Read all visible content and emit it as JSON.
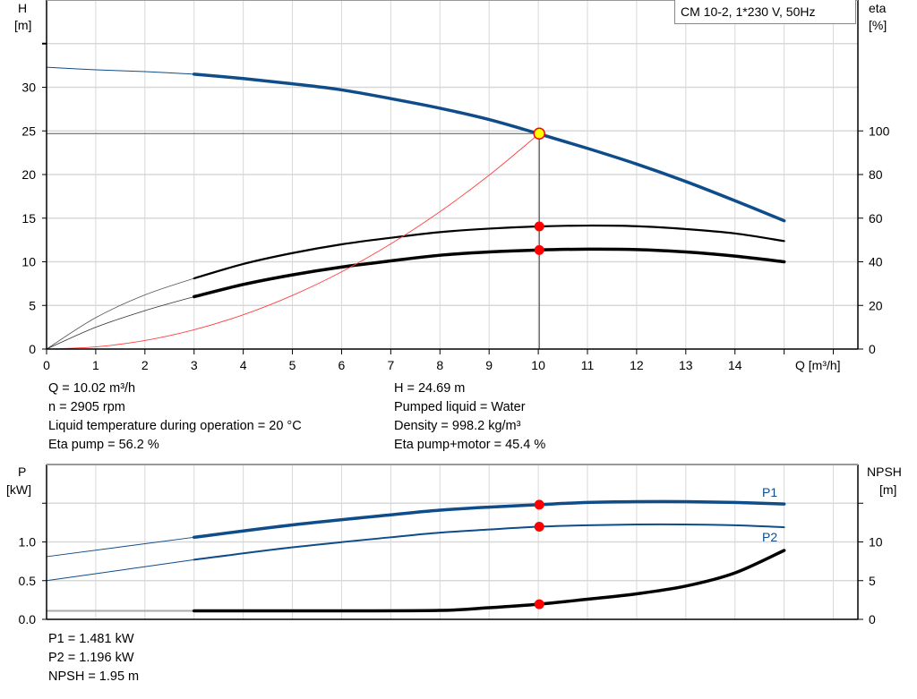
{
  "title": "CM 10-2, 1*230 V, 50Hz",
  "colors": {
    "head": "#0f4c8a",
    "efficiency": "#000000",
    "system_curve": "#ff4040",
    "duty_point": "#ff0000",
    "duty_point_head": "#ffff00",
    "grid": "#d8d8d8",
    "power": "#0f4c8a",
    "npsh": "#000000"
  },
  "info_top": {
    "left": [
      "Q = 10.02 m³/h",
      "n = 2905 rpm",
      "Liquid temperature during operation = 20 °C",
      "Eta pump = 56.2 %"
    ],
    "right": [
      "H = 24.69 m",
      "Pumped liquid = Water",
      "Density = 998.2 kg/m³",
      "Eta pump+motor = 45.4 %"
    ]
  },
  "info_bottom": [
    "P1 = 1.481 kW",
    "P2 = 1.196 kW",
    "NPSH = 1.95 m"
  ],
  "chart_data": [
    {
      "type": "line",
      "xlabel": "Q [m³/h]",
      "ylabel": "H\n[m]",
      "ylabel_parts": [
        "H",
        "[m]"
      ],
      "y2label_parts": [
        "eta",
        "[%]"
      ],
      "xlim": [
        0,
        16.5
      ],
      "ylim": [
        0,
        40
      ],
      "y2lim": [
        0,
        160
      ],
      "xticks": [
        0,
        1,
        2,
        3,
        4,
        5,
        6,
        7,
        8,
        9,
        10,
        11,
        12,
        13,
        14
      ],
      "yticks": [
        0,
        5,
        10,
        15,
        20,
        25,
        30
      ],
      "y2ticks": [
        0,
        20,
        40,
        60,
        80,
        100
      ],
      "grid": true,
      "series": [
        {
          "key": "H",
          "axis": "left",
          "thin_until": 3,
          "x": [
            0,
            1,
            2,
            3,
            4,
            5,
            6,
            7,
            8,
            9,
            10,
            11,
            12,
            13,
            14,
            15
          ],
          "y": [
            32.3,
            32.0,
            31.8,
            31.5,
            31.0,
            30.4,
            29.7,
            28.7,
            27.6,
            26.3,
            24.69,
            23.0,
            21.2,
            19.2,
            17.0,
            14.7
          ]
        },
        {
          "key": "eta_pump",
          "axis": "right",
          "thin_until": 3,
          "x": [
            0,
            1,
            2,
            3,
            4,
            5,
            6,
            7,
            8,
            9,
            10,
            11,
            12,
            13,
            14,
            15
          ],
          "y": [
            0,
            14.4,
            24.8,
            32.4,
            39,
            44,
            48,
            51,
            53.6,
            55.2,
            56.2,
            56.6,
            56.3,
            55,
            53,
            49.5
          ]
        },
        {
          "key": "eta_pump_motor",
          "axis": "right",
          "thin_until": 3,
          "x": [
            0,
            1,
            2,
            3,
            4,
            5,
            6,
            7,
            8,
            9,
            10,
            11,
            12,
            13,
            14,
            15
          ],
          "y": [
            0,
            10,
            17.6,
            24,
            29.6,
            34,
            37.6,
            40.4,
            43,
            44.5,
            45.4,
            45.8,
            45.6,
            44.5,
            42.6,
            40
          ]
        },
        {
          "key": "system_curve",
          "axis": "left",
          "x": [
            0,
            1,
            2,
            3,
            4,
            5,
            6,
            7,
            8,
            9,
            10.02
          ],
          "y": [
            0,
            0.25,
            0.98,
            2.21,
            3.93,
            6.15,
            8.85,
            12.05,
            15.74,
            19.92,
            24.69
          ]
        }
      ],
      "duty_point": {
        "Q": 10.02,
        "H": 24.69,
        "eta_pump": 56.2,
        "eta_pump_motor": 45.4
      }
    },
    {
      "type": "line",
      "ylabel_parts": [
        "P",
        "[kW]"
      ],
      "y2label_parts": [
        "NPSH",
        "[m]"
      ],
      "xlim": [
        0,
        16.5
      ],
      "ylim": [
        0,
        2.0
      ],
      "y2lim": [
        0,
        20
      ],
      "yticks": [
        "0.0",
        "0.5",
        "1.0"
      ],
      "y2ticks": [
        0,
        5,
        10
      ],
      "grid": true,
      "series": [
        {
          "name": "P1",
          "key": "P1",
          "axis": "left",
          "thin_until": 3,
          "x": [
            0,
            3,
            5,
            7,
            8,
            9,
            10,
            11,
            12,
            13,
            14,
            15
          ],
          "y": [
            0.81,
            1.06,
            1.22,
            1.35,
            1.41,
            1.45,
            1.481,
            1.51,
            1.52,
            1.52,
            1.51,
            1.49
          ]
        },
        {
          "name": "P2",
          "key": "P2",
          "axis": "left",
          "thin_until": 3,
          "x": [
            0,
            3,
            5,
            7,
            8,
            9,
            10,
            11,
            12,
            13,
            14,
            15
          ],
          "y": [
            0.5,
            0.77,
            0.93,
            1.06,
            1.12,
            1.16,
            1.196,
            1.215,
            1.225,
            1.225,
            1.215,
            1.19
          ]
        },
        {
          "key": "NPSH",
          "axis": "right",
          "thin_until": 3,
          "x": [
            0,
            3,
            6,
            8,
            9,
            10,
            11,
            12,
            13,
            14,
            15
          ],
          "y": [
            1.1,
            1.1,
            1.1,
            1.15,
            1.5,
            1.95,
            2.6,
            3.3,
            4.3,
            6.0,
            8.9
          ]
        }
      ],
      "duty_point": {
        "Q": 10.02,
        "P1": 1.481,
        "P2": 1.196,
        "NPSH": 1.95
      }
    }
  ]
}
